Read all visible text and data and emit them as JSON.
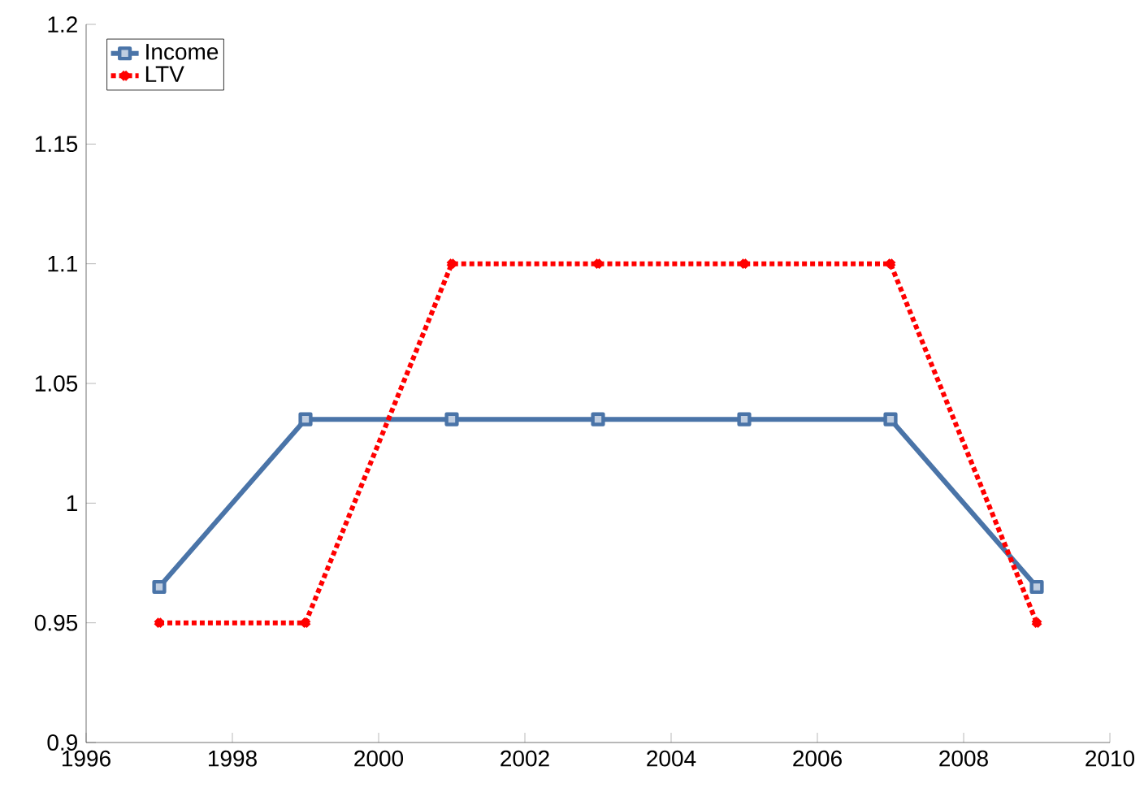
{
  "chart_data": {
    "type": "line",
    "x": [
      1997,
      1999,
      2001,
      2003,
      2005,
      2007,
      2009
    ],
    "series": [
      {
        "name": "Income",
        "color": "#4a74a8",
        "marker": "square",
        "line_style": "solid",
        "values": [
          0.965,
          1.035,
          1.035,
          1.035,
          1.035,
          1.035,
          0.965
        ]
      },
      {
        "name": "LTV",
        "color": "#ff0000",
        "marker": "cross",
        "line_style": "dotted",
        "values": [
          0.95,
          0.95,
          1.1,
          1.1,
          1.1,
          1.1,
          0.95
        ]
      }
    ],
    "xlim": [
      1996,
      2010
    ],
    "xticks": [
      1996,
      1998,
      2000,
      2002,
      2004,
      2006,
      2008,
      2010
    ],
    "ylim": [
      0.9,
      1.2
    ],
    "yticks": [
      0.9,
      0.95,
      1,
      1.05,
      1.1,
      1.15,
      1.2
    ],
    "grid": false,
    "legend": "top left"
  }
}
